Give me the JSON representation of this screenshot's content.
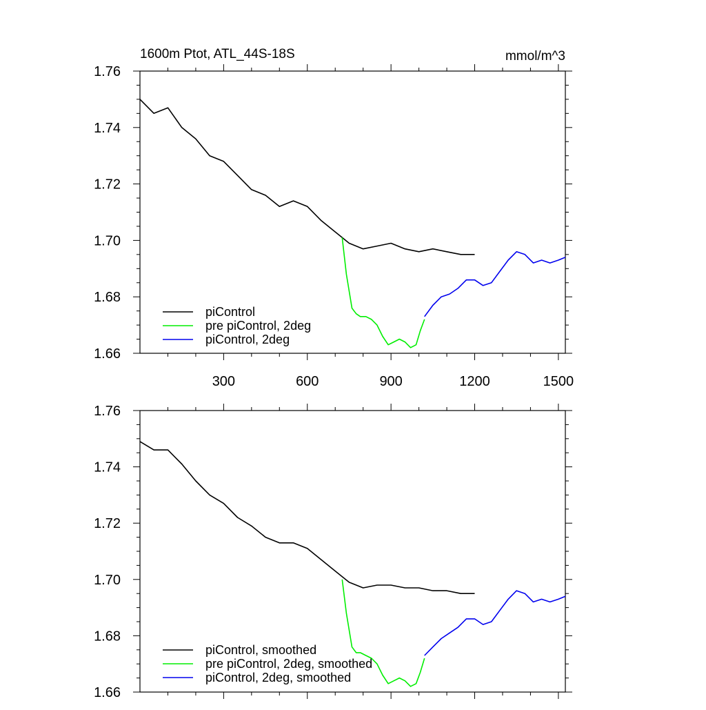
{
  "title_left": "1600m Ptot, ATL_44S-18S",
  "title_right": "mmol/m^3",
  "colors": {
    "piControl": "#000000",
    "pre_2deg": "#00ee00",
    "piControl_2deg": "#0000ee"
  },
  "chart_data": [
    {
      "type": "line",
      "title": "1600m Ptot, ATL_44S-18S",
      "units": "mmol/m^3",
      "xlim": [
        0,
        1525
      ],
      "ylim": [
        1.66,
        1.76
      ],
      "x_ticks": [
        300,
        600,
        900,
        1200,
        1500
      ],
      "y_ticks": [
        1.66,
        1.68,
        1.7,
        1.72,
        1.74,
        1.76
      ],
      "y_tick_labels": [
        "1.66",
        "1.68",
        "1.70",
        "1.72",
        "1.74",
        "1.76"
      ],
      "x_tick_labels": [
        "300",
        "600",
        "900",
        "1200",
        "1500"
      ],
      "legend_location": "lower-left",
      "series": [
        {
          "name": "piControl",
          "color": "#000000",
          "x": [
            0,
            50,
            100,
            150,
            200,
            250,
            300,
            350,
            400,
            450,
            500,
            550,
            600,
            650,
            700,
            725,
            750,
            800,
            850,
            900,
            950,
            1000,
            1050,
            1100,
            1150,
            1200
          ],
          "y": [
            1.75,
            1.745,
            1.747,
            1.74,
            1.736,
            1.73,
            1.728,
            1.723,
            1.718,
            1.716,
            1.712,
            1.714,
            1.712,
            1.707,
            1.703,
            1.701,
            1.699,
            1.697,
            1.698,
            1.699,
            1.697,
            1.696,
            1.697,
            1.696,
            1.695,
            1.695
          ]
        },
        {
          "name": "pre piControl, 2deg",
          "color": "#00ee00",
          "x": [
            725,
            740,
            760,
            775,
            790,
            810,
            830,
            850,
            870,
            890,
            910,
            930,
            950,
            970,
            990,
            1005,
            1020
          ],
          "y": [
            1.701,
            1.688,
            1.676,
            1.674,
            1.673,
            1.673,
            1.672,
            1.67,
            1.666,
            1.663,
            1.664,
            1.665,
            1.664,
            1.662,
            1.663,
            1.668,
            1.672
          ]
        },
        {
          "name": "piControl, 2deg",
          "color": "#0000ee",
          "x": [
            1020,
            1050,
            1080,
            1110,
            1140,
            1170,
            1200,
            1230,
            1260,
            1290,
            1320,
            1350,
            1380,
            1410,
            1440,
            1470,
            1500,
            1525
          ],
          "y": [
            1.673,
            1.677,
            1.68,
            1.681,
            1.683,
            1.686,
            1.686,
            1.684,
            1.685,
            1.689,
            1.693,
            1.696,
            1.695,
            1.692,
            1.693,
            1.692,
            1.693,
            1.694
          ]
        }
      ]
    },
    {
      "type": "line",
      "xlim": [
        0,
        1525
      ],
      "ylim": [
        1.66,
        1.76
      ],
      "y_ticks": [
        1.66,
        1.68,
        1.7,
        1.72,
        1.74,
        1.76
      ],
      "y_tick_labels": [
        "1.66",
        "1.68",
        "1.70",
        "1.72",
        "1.74",
        "1.76"
      ],
      "legend_location": "lower-left",
      "series": [
        {
          "name": "piControl, smoothed",
          "color": "#000000",
          "x": [
            0,
            50,
            100,
            150,
            200,
            250,
            300,
            350,
            400,
            450,
            500,
            550,
            600,
            650,
            700,
            725,
            750,
            800,
            850,
            900,
            950,
            1000,
            1050,
            1100,
            1150,
            1200
          ],
          "y": [
            1.749,
            1.746,
            1.746,
            1.741,
            1.735,
            1.73,
            1.727,
            1.722,
            1.719,
            1.715,
            1.713,
            1.713,
            1.711,
            1.707,
            1.703,
            1.701,
            1.699,
            1.697,
            1.698,
            1.698,
            1.697,
            1.697,
            1.696,
            1.696,
            1.695,
            1.695
          ]
        },
        {
          "name": "pre piControl, 2deg, smoothed",
          "color": "#00ee00",
          "x": [
            725,
            740,
            760,
            775,
            790,
            810,
            830,
            850,
            870,
            890,
            910,
            930,
            950,
            970,
            990,
            1005,
            1020
          ],
          "y": [
            1.7,
            1.688,
            1.676,
            1.674,
            1.674,
            1.673,
            1.672,
            1.67,
            1.666,
            1.663,
            1.664,
            1.665,
            1.664,
            1.662,
            1.663,
            1.667,
            1.672
          ]
        },
        {
          "name": "piControl, 2deg, smoothed",
          "color": "#0000ee",
          "x": [
            1020,
            1050,
            1080,
            1110,
            1140,
            1170,
            1200,
            1230,
            1260,
            1290,
            1320,
            1350,
            1380,
            1410,
            1440,
            1470,
            1500,
            1525
          ],
          "y": [
            1.673,
            1.676,
            1.679,
            1.681,
            1.683,
            1.686,
            1.686,
            1.684,
            1.685,
            1.689,
            1.693,
            1.696,
            1.695,
            1.692,
            1.693,
            1.692,
            1.693,
            1.694
          ]
        }
      ]
    }
  ]
}
